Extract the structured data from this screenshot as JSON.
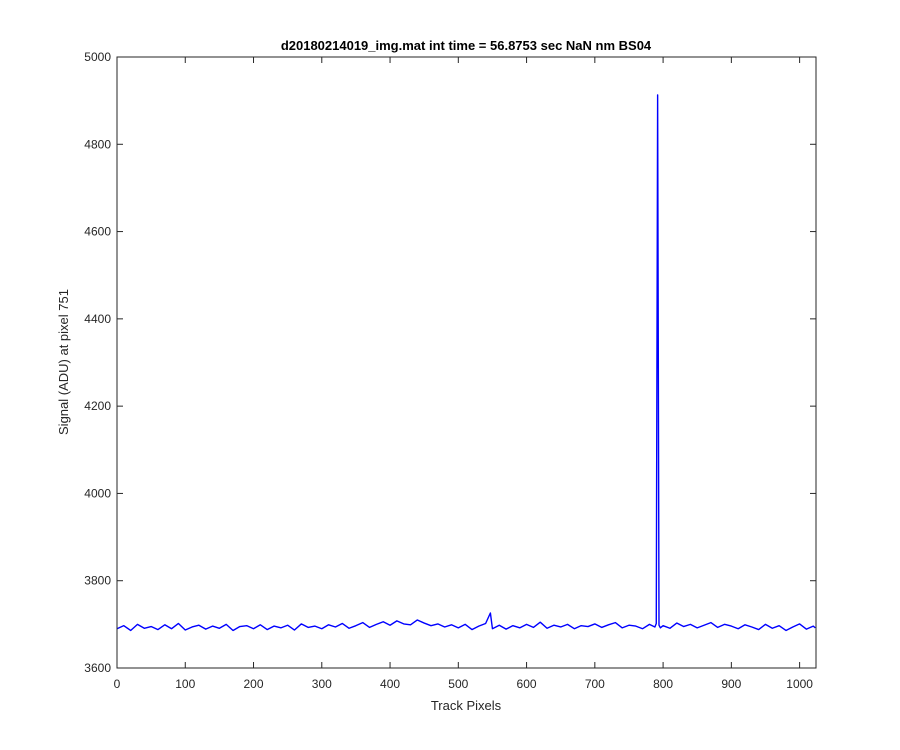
{
  "chart_data": {
    "type": "line",
    "title": "d20180214019_img.mat int time = 56.8753 sec  NaN nm BS04",
    "xlabel": "Track Pixels",
    "ylabel": "Signal (ADU) at pixel 751",
    "xlim": [
      0,
      1024
    ],
    "ylim": [
      3600,
      5000
    ],
    "x_ticks": [
      0,
      100,
      200,
      300,
      400,
      500,
      600,
      700,
      800,
      900,
      1000
    ],
    "y_ticks": [
      3600,
      3800,
      4000,
      4200,
      4400,
      4600,
      4800,
      5000
    ],
    "grid": false,
    "line_color": "#0000ff",
    "series": [
      {
        "x": [
          0,
          10,
          20,
          30,
          40,
          50,
          60,
          70,
          80,
          90,
          100,
          110,
          120,
          130,
          140,
          150,
          160,
          170,
          180,
          190,
          200,
          210,
          220,
          230,
          240,
          250,
          260,
          270,
          280,
          290,
          300,
          310,
          320,
          330,
          340,
          350,
          360,
          370,
          380,
          390,
          400,
          410,
          420,
          430,
          440,
          450,
          460,
          470,
          480,
          490,
          500,
          510,
          520,
          530,
          540,
          547,
          550,
          560,
          570,
          580,
          590,
          600,
          610,
          620,
          630,
          640,
          650,
          660,
          670,
          680,
          690,
          700,
          710,
          720,
          730,
          740,
          750,
          760,
          770,
          780,
          788,
          790,
          792,
          794,
          796,
          800,
          810,
          820,
          830,
          840,
          850,
          860,
          870,
          880,
          890,
          900,
          910,
          920,
          930,
          940,
          950,
          960,
          970,
          980,
          990,
          1000,
          1010,
          1020,
          1023
        ],
        "y": [
          3690,
          3697,
          3686,
          3700,
          3691,
          3695,
          3688,
          3699,
          3690,
          3702,
          3687,
          3694,
          3698,
          3689,
          3696,
          3691,
          3700,
          3686,
          3695,
          3697,
          3690,
          3699,
          3688,
          3696,
          3692,
          3698,
          3687,
          3701,
          3693,
          3696,
          3690,
          3699,
          3694,
          3702,
          3691,
          3697,
          3704,
          3693,
          3700,
          3706,
          3698,
          3708,
          3701,
          3699,
          3710,
          3703,
          3697,
          3701,
          3694,
          3699,
          3692,
          3700,
          3688,
          3696,
          3702,
          3726,
          3690,
          3698,
          3689,
          3697,
          3692,
          3700,
          3693,
          3705,
          3691,
          3698,
          3694,
          3700,
          3690,
          3697,
          3695,
          3701,
          3693,
          3699,
          3704,
          3692,
          3698,
          3696,
          3690,
          3700,
          3694,
          3702,
          4913,
          3698,
          3692,
          3697,
          3691,
          3703,
          3695,
          3700,
          3692,
          3698,
          3704,
          3693,
          3700,
          3696,
          3690,
          3699,
          3694,
          3688,
          3700,
          3691,
          3697,
          3686,
          3694,
          3701,
          3689,
          3696,
          3692
        ]
      }
    ]
  }
}
